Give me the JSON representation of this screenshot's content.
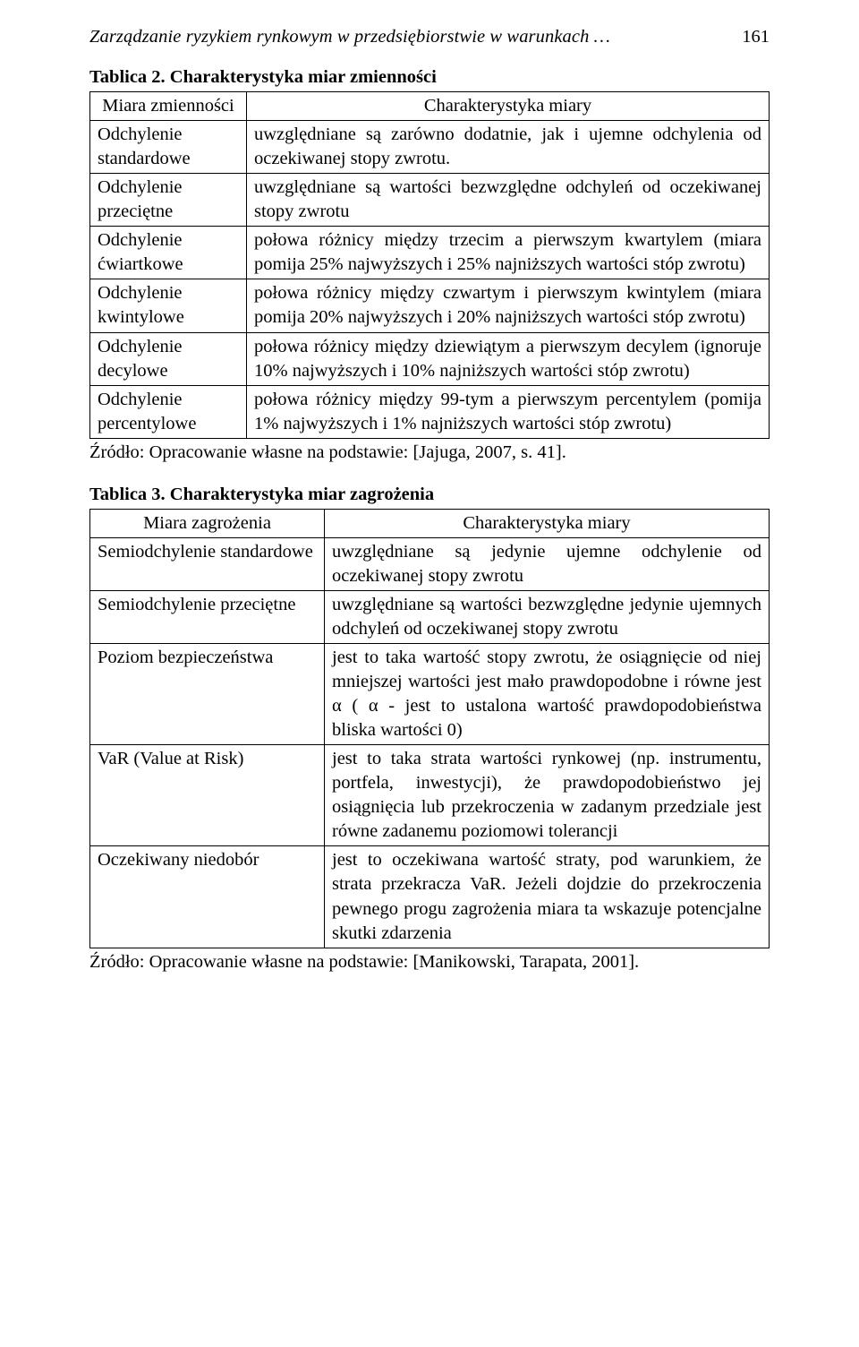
{
  "header": {
    "running_title": "Zarządzanie ryzykiem rynkowym w przedsiębiorstwie w warunkach …",
    "page_number": "161"
  },
  "table2": {
    "caption": "Tablica 2. Charakterystyka miar zmienności",
    "col1_header": "Miara zmienności",
    "col2_header": "Charakterystyka miary",
    "rows": [
      {
        "c1": "Odchylenie standardowe",
        "c2": "uwzględniane są zarówno dodatnie, jak i ujemne odchylenia od oczekiwanej stopy zwrotu."
      },
      {
        "c1": "Odchylenie przeciętne",
        "c2": "uwzględniane są wartości bezwzględne odchyleń od oczekiwanej stopy zwrotu"
      },
      {
        "c1": "Odchylenie ćwiartkowe",
        "c2": "połowa różnicy między trzecim a pierwszym kwartylem (miara pomija 25% najwyższych i 25% najniższych wartości stóp zwrotu)"
      },
      {
        "c1": "Odchylenie kwintylowe",
        "c2": "połowa różnicy między czwartym i pierwszym kwintylem (miara pomija 20% najwyższych i 20% najniższych wartości stóp zwrotu)"
      },
      {
        "c1": "Odchylenie decylowe",
        "c2": "połowa różnicy między dziewiątym a pierwszym decylem (ignoruje 10% najwyższych i 10% najniższych wartości stóp zwrotu)"
      },
      {
        "c1": "Odchylenie percentylowe",
        "c2": "połowa różnicy między 99-tym a pierwszym percentylem (pomija 1% najwyższych i 1% najniższych wartości stóp zwrotu)"
      }
    ],
    "source": "Źródło: Opracowanie własne na podstawie: [Jajuga, 2007, s. 41]."
  },
  "table3": {
    "caption": "Tablica 3. Charakterystyka miar  zagrożenia",
    "col1_header": "Miara zagrożenia",
    "col2_header": "Charakterystyka miary",
    "rows": [
      {
        "c1": "Semiodchylenie standardowe",
        "c2": "uwzględniane są jedynie ujemne odchylenie od oczekiwanej stopy zwrotu"
      },
      {
        "c1": "Semiodchylenie przeciętne",
        "c2": "uwzględniane są wartości bezwzględne jedynie ujemnych odchyleń od oczekiwanej stopy zwrotu"
      },
      {
        "c1": "Poziom bezpieczeństwa",
        "c2": "jest to taka wartość stopy zwrotu, że osiągnięcie od niej mniejszej wartości jest mało prawdopodobne i równe jest α ( α - jest to ustalona wartość prawdopodobieństwa bliska wartości 0)"
      },
      {
        "c1": "VaR (Value at Risk)",
        "c2": "jest to taka strata wartości rynkowej (np. instrumentu, portfela, inwestycji), że prawdopodobieństwo jej osiągnięcia lub przekroczenia w zadanym przedziale jest równe zadanemu poziomowi tolerancji"
      },
      {
        "c1": "Oczekiwany niedobór",
        "c2": "jest to oczekiwana wartość straty, pod warunkiem, że strata przekracza VaR. Jeżeli dojdzie do przekroczenia pewnego progu zagrożenia miara ta wskazuje potencjalne skutki zdarzenia"
      }
    ],
    "source": "Źródło: Opracowanie własne na podstawie: [Manikowski, Tarapata, 2001]."
  }
}
